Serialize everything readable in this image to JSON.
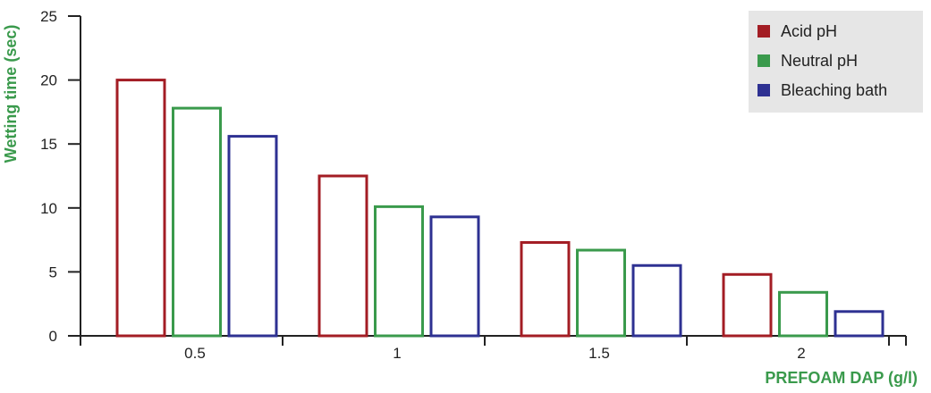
{
  "chart_data": {
    "type": "bar",
    "categories": [
      "0.5",
      "1",
      "1.5",
      "2"
    ],
    "series": [
      {
        "name": "Acid pH",
        "values": [
          20,
          12.5,
          7.3,
          4.8
        ],
        "color": "#a31d24"
      },
      {
        "name": "Neutral pH",
        "values": [
          17.8,
          10.1,
          6.7,
          3.4
        ],
        "color": "#3a9a4c"
      },
      {
        "name": "Bleaching bath",
        "values": [
          15.6,
          9.3,
          5.5,
          1.9
        ],
        "color": "#2e3192"
      }
    ],
    "title": "",
    "xlabel": "PREFOAM DAP (g/l)",
    "ylabel": "Wetting time (sec)",
    "ylim": [
      0,
      25
    ],
    "yticks": [
      "0",
      "5",
      "10",
      "15",
      "20",
      "25"
    ],
    "legend_position": "top-right",
    "grid": false,
    "axis_title_color": "#3a9a4c",
    "legend_background": "#e6e6e6"
  }
}
